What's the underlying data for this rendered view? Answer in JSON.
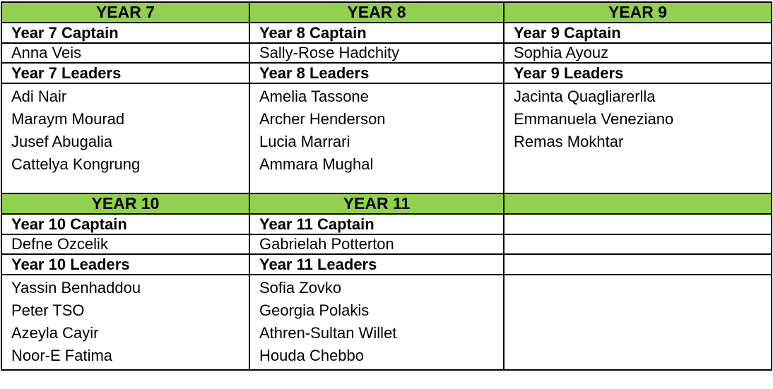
{
  "table": {
    "header_bg": "#92D050",
    "border_color": "#000000",
    "text_color": "#000000",
    "sections": [
      {
        "columns": [
          {
            "year": "YEAR 7",
            "captain_label": "Year 7 Captain",
            "captain": "Anna Veis",
            "leaders_label": "Year 7 Leaders",
            "leaders": [
              "Adi Nair",
              "Maraym Mourad",
              "Jusef Abugalia",
              "Cattelya Kongrung"
            ]
          },
          {
            "year": "YEAR 8",
            "captain_label": "Year 8 Captain",
            "captain": "Sally-Rose Hadchity",
            "leaders_label": "Year 8 Leaders",
            "leaders": [
              "Amelia Tassone",
              "Archer Henderson",
              "Lucia Marrari",
              "Ammara Mughal"
            ]
          },
          {
            "year": "YEAR 9",
            "captain_label": "Year 9 Captain",
            "captain": "Sophia Ayouz",
            "leaders_label": "Year 9 Leaders",
            "leaders": [
              "Jacinta Quagliarerlla",
              "Emmanuela Veneziano",
              "Remas Mokhtar"
            ]
          }
        ]
      },
      {
        "columns": [
          {
            "year": "YEAR 10",
            "captain_label": "Year 10 Captain",
            "captain": "Defne Ozcelik",
            "leaders_label": "Year 10 Leaders",
            "leaders": [
              "Yassin Benhaddou",
              "Peter TSO",
              "Azeyla Cayir",
              "Noor-E Fatima"
            ]
          },
          {
            "year": "YEAR 11",
            "captain_label": "Year 11 Captain",
            "captain": "Gabrielah Potterton",
            "leaders_label": "Year 11 Leaders",
            "leaders": [
              "Sofia Zovko",
              "Georgia Polakis",
              "Athren-Sultan Willet",
              "Houda Chebbo"
            ]
          },
          {
            "year": "",
            "captain_label": "",
            "captain": "",
            "leaders_label": "",
            "leaders": []
          }
        ]
      }
    ]
  }
}
